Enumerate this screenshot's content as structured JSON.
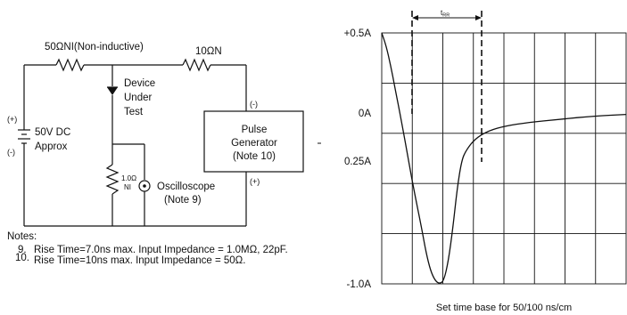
{
  "circuit": {
    "resistor_top_left_label": "50ΩNI(Non-inductive)",
    "resistor_top_right_label": "10ΩN",
    "dut_label_lines": [
      "Device",
      "Under",
      "Test"
    ],
    "supply_plus": "(+)",
    "supply_minus": "(-)",
    "supply_label_lines": [
      "50V DC",
      "Approx"
    ],
    "pulse_gen_minus": "(-)",
    "pulse_gen_plus": "(+)",
    "pulse_gen_label_lines": [
      "Pulse",
      "Generator",
      "(Note 10)"
    ],
    "sense_resistor_label_lines": [
      "1.0Ω",
      "NI"
    ],
    "scope_label_lines": [
      "Oscilloscope",
      "(Note 9)"
    ]
  },
  "notes": {
    "heading": "Notes:",
    "items": [
      {
        "number": "9.",
        "text": "Rise Time=7.0ns max. Input  Impedance = 1.0MΩ, 22pF."
      },
      {
        "number": "10.",
        "text": "Rise Time=10ns max. Input  Impedance = 50Ω."
      }
    ]
  },
  "chart_data": {
    "type": "line",
    "title": "",
    "xlabel": "Set time base for 50/100 ns/cm",
    "ylabel": "",
    "y_tick_labels": [
      "+0.5A",
      "0A",
      "0.25A",
      "-1.0A"
    ],
    "grid": true,
    "grid_columns": 8,
    "grid_rows": 5,
    "trr_marker_label": "tRR",
    "series": [
      {
        "values": [
          [
            0.0,
            0.5
          ],
          [
            0.1,
            0.42
          ],
          [
            0.2,
            0.3
          ],
          [
            0.3,
            0.16
          ],
          [
            0.45,
            -0.05
          ],
          [
            0.6,
            -0.28
          ],
          [
            0.75,
            -0.5
          ],
          [
            0.9,
            -0.7
          ],
          [
            1.0,
            -0.85
          ],
          [
            1.1,
            -0.96
          ],
          [
            1.2,
            -1.02
          ],
          [
            1.3,
            -1.04
          ],
          [
            1.4,
            -1.02
          ],
          [
            1.5,
            -0.9
          ],
          [
            1.6,
            -0.7
          ],
          [
            1.7,
            -0.45
          ],
          [
            1.8,
            -0.28
          ],
          [
            1.9,
            -0.22
          ],
          [
            2.1,
            -0.15
          ],
          [
            2.4,
            -0.1
          ],
          [
            2.8,
            -0.07
          ],
          [
            3.3,
            -0.05
          ],
          [
            4.0,
            -0.03
          ],
          [
            4.8,
            -0.01
          ],
          [
            5.5,
            0.0
          ]
        ]
      }
    ]
  }
}
